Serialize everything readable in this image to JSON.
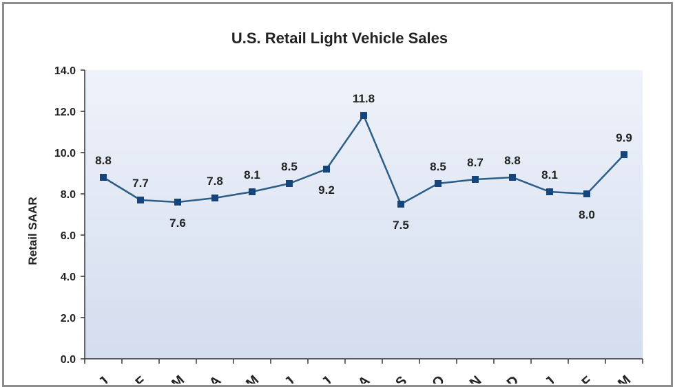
{
  "chart_data": {
    "type": "line",
    "title": "U.S. Retail Light Vehicle Sales",
    "xlabel": "",
    "ylabel": "Retail SAAR",
    "ylim": [
      0,
      14
    ],
    "yticks": [
      "0.0",
      "2.0",
      "4.0",
      "6.0",
      "8.0",
      "10.0",
      "12.0",
      "14.0"
    ],
    "categories": [
      "J",
      "F",
      "M",
      "A",
      "M",
      "J",
      "J",
      "A",
      "S",
      "O",
      "N",
      "D",
      "J",
      "F",
      "M"
    ],
    "values": [
      8.8,
      7.7,
      7.6,
      7.8,
      8.1,
      8.5,
      9.2,
      11.8,
      7.5,
      8.5,
      8.7,
      8.8,
      8.1,
      8.0,
      9.9
    ],
    "labels": [
      "8.8",
      "7.7",
      "7.6",
      "7.8",
      "8.1",
      "8.5",
      "9.2",
      "11.8",
      "7.5",
      "8.5",
      "8.7",
      "8.8",
      "8.1",
      "8.0",
      "9.9"
    ],
    "line_color": "#2b5d86",
    "marker_color": "#15457a",
    "plot_bg_top": "#eef2fa",
    "plot_bg_bottom": "#d4ddee"
  }
}
